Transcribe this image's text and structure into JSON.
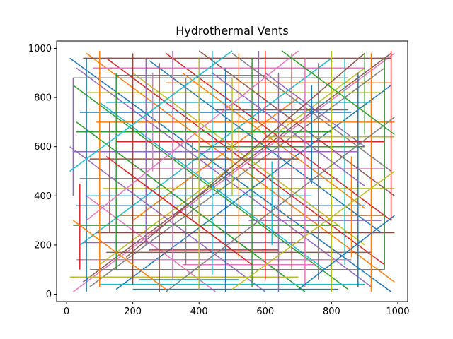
{
  "chart_data": {
    "type": "line",
    "title": "Hydrothermal Vents",
    "xlabel": "",
    "ylabel": "",
    "xlim": [
      -30,
      1030
    ],
    "ylim": [
      -30,
      1030
    ],
    "xticks": [
      0,
      200,
      400,
      600,
      800,
      1000
    ],
    "yticks": [
      0,
      200,
      400,
      600,
      800,
      1000
    ],
    "grid": false,
    "legend": "none",
    "colors": [
      "#1f77b4",
      "#ff7f0e",
      "#2ca02c",
      "#d62728",
      "#9467bd",
      "#8c564b",
      "#e377c2",
      "#7f7f7f",
      "#bcbd22",
      "#17becf"
    ],
    "segments": [
      [
        10,
        960,
        980,
        10
      ],
      [
        60,
        980,
        990,
        50
      ],
      [
        20,
        850,
        850,
        20
      ],
      [
        120,
        960,
        960,
        120
      ],
      [
        30,
        920,
        920,
        30
      ],
      [
        50,
        50,
        980,
        980
      ],
      [
        20,
        10,
        990,
        980
      ],
      [
        70,
        30,
        960,
        920
      ],
      [
        100,
        120,
        900,
        920
      ],
      [
        40,
        200,
        800,
        960
      ],
      [
        150,
        20,
        980,
        850
      ],
      [
        200,
        300,
        700,
        800
      ],
      [
        30,
        700,
        720,
        10
      ],
      [
        300,
        980,
        980,
        300
      ],
      [
        10,
        600,
        600,
        10
      ],
      [
        400,
        990,
        990,
        400
      ],
      [
        60,
        400,
        450,
        10
      ],
      [
        500,
        980,
        980,
        500
      ],
      [
        200,
        900,
        900,
        200
      ],
      [
        100,
        780,
        780,
        100
      ],
      [
        250,
        950,
        950,
        250
      ],
      [
        350,
        900,
        900,
        350
      ],
      [
        80,
        650,
        650,
        80
      ],
      [
        180,
        500,
        500,
        180
      ],
      [
        600,
        900,
        900,
        600
      ],
      [
        50,
        960,
        980,
        960
      ],
      [
        80,
        920,
        900,
        920
      ],
      [
        20,
        880,
        850,
        880
      ],
      [
        60,
        820,
        950,
        820
      ],
      [
        120,
        780,
        920,
        780
      ],
      [
        40,
        740,
        860,
        740
      ],
      [
        90,
        700,
        990,
        700
      ],
      [
        30,
        660,
        800,
        660
      ],
      [
        150,
        620,
        960,
        620
      ],
      [
        20,
        580,
        880,
        580
      ],
      [
        70,
        550,
        700,
        550
      ],
      [
        200,
        510,
        960,
        510
      ],
      [
        40,
        470,
        820,
        470
      ],
      [
        110,
        430,
        990,
        430
      ],
      [
        60,
        400,
        740,
        400
      ],
      [
        30,
        360,
        900,
        360
      ],
      [
        160,
        320,
        960,
        320
      ],
      [
        20,
        280,
        820,
        280
      ],
      [
        90,
        250,
        990,
        250
      ],
      [
        50,
        210,
        720,
        210
      ],
      [
        120,
        170,
        920,
        170
      ],
      [
        30,
        140,
        860,
        140
      ],
      [
        70,
        100,
        960,
        100
      ],
      [
        10,
        70,
        700,
        70
      ],
      [
        100,
        40,
        900,
        40
      ],
      [
        200,
        20,
        820,
        20
      ],
      [
        300,
        860,
        980,
        860
      ],
      [
        400,
        600,
        900,
        600
      ],
      [
        250,
        180,
        640,
        180
      ],
      [
        550,
        300,
        950,
        300
      ],
      [
        450,
        750,
        850,
        750
      ],
      [
        350,
        120,
        750,
        120
      ],
      [
        150,
        890,
        600,
        890
      ],
      [
        600,
        640,
        990,
        640
      ],
      [
        220,
        60,
        520,
        60
      ],
      [
        60,
        10,
        60,
        960
      ],
      [
        100,
        30,
        100,
        990
      ],
      [
        150,
        100,
        150,
        900
      ],
      [
        200,
        40,
        200,
        980
      ],
      [
        240,
        200,
        240,
        960
      ],
      [
        280,
        10,
        280,
        940
      ],
      [
        320,
        60,
        320,
        990
      ],
      [
        360,
        120,
        360,
        880
      ],
      [
        400,
        20,
        400,
        960
      ],
      [
        440,
        80,
        440,
        990
      ],
      [
        480,
        10,
        480,
        920
      ],
      [
        520,
        150,
        520,
        980
      ],
      [
        560,
        30,
        560,
        960
      ],
      [
        600,
        60,
        600,
        990
      ],
      [
        640,
        10,
        640,
        900
      ],
      [
        680,
        100,
        680,
        980
      ],
      [
        720,
        30,
        720,
        960
      ],
      [
        760,
        60,
        760,
        940
      ],
      [
        800,
        10,
        800,
        990
      ],
      [
        840,
        120,
        840,
        960
      ],
      [
        880,
        30,
        880,
        900
      ],
      [
        920,
        10,
        920,
        980
      ],
      [
        960,
        100,
        960,
        960
      ],
      [
        980,
        300,
        980,
        990
      ],
      [
        20,
        400,
        20,
        880
      ],
      [
        130,
        250,
        130,
        700
      ],
      [
        260,
        500,
        260,
        900
      ],
      [
        380,
        300,
        380,
        620
      ],
      [
        500,
        400,
        500,
        880
      ],
      [
        620,
        200,
        620,
        540
      ],
      [
        740,
        450,
        740,
        850
      ],
      [
        860,
        150,
        860,
        560
      ],
      [
        900,
        650,
        900,
        980
      ],
      [
        40,
        100,
        40,
        450
      ],
      [
        580,
        700,
        580,
        990
      ],
      [
        180,
        150,
        900,
        980
      ],
      [
        60,
        300,
        700,
        990
      ],
      [
        300,
        10,
        990,
        720
      ],
      [
        500,
        20,
        990,
        500
      ],
      [
        10,
        500,
        500,
        990
      ],
      [
        700,
        20,
        990,
        320
      ],
      [
        20,
        300,
        300,
        20
      ],
      [
        650,
        990,
        990,
        650
      ],
      [
        120,
        560,
        560,
        120
      ],
      [
        440,
        900,
        900,
        440
      ]
    ]
  }
}
